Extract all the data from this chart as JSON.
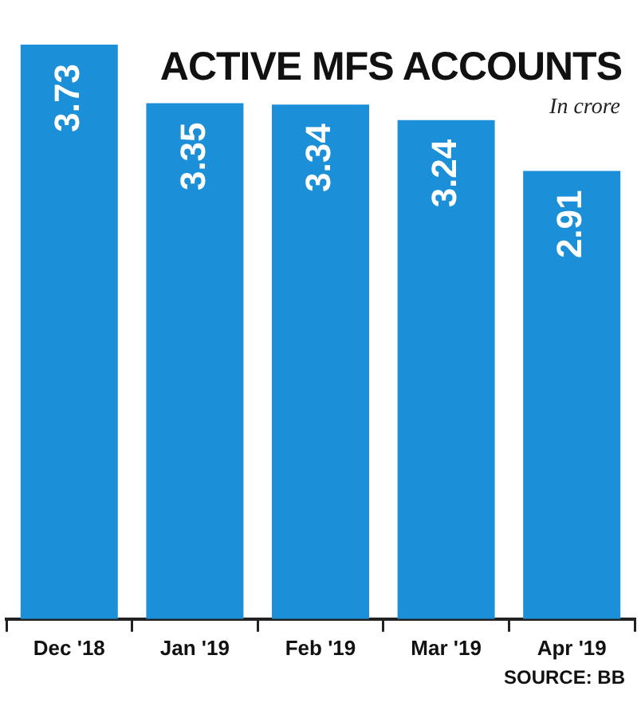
{
  "chart_data": {
    "type": "bar",
    "title": "ACTIVE MFS ACCOUNTS",
    "subtitle": "In crore",
    "categories": [
      "Dec '18",
      "Jan '19",
      "Feb '19",
      "Mar '19",
      "Apr '19"
    ],
    "values": [
      3.73,
      3.35,
      3.34,
      3.24,
      2.91
    ],
    "color": "#1b8fd8",
    "ylim": [
      0,
      3.73
    ],
    "data_labels": true,
    "annotations": [
      "SOURCE: BB"
    ]
  }
}
